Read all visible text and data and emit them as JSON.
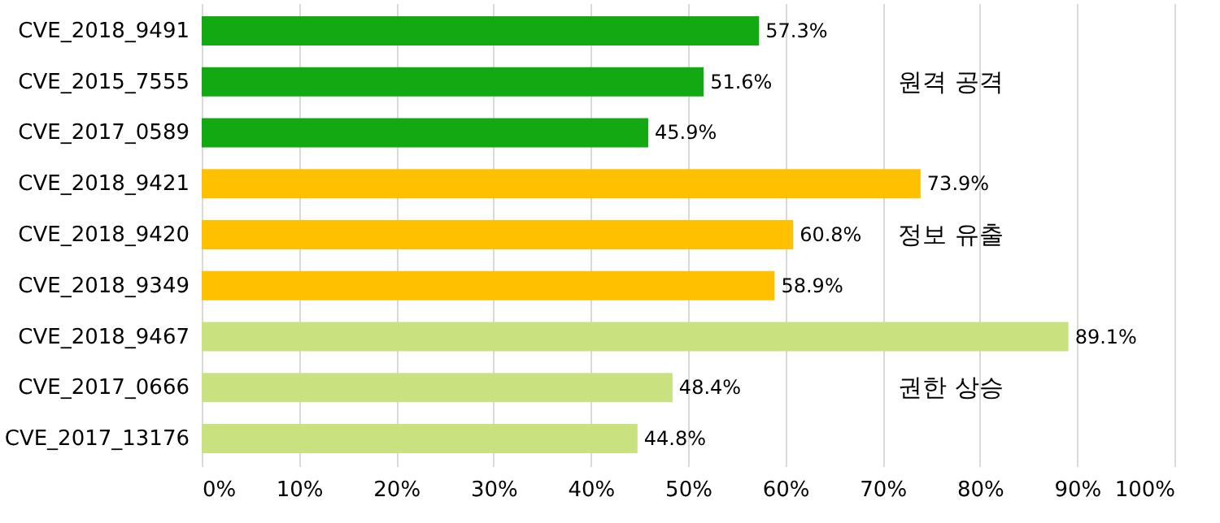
{
  "chart_data": {
    "type": "bar",
    "orientation": "horizontal",
    "categories": [
      "CVE_2018_9491",
      "CVE_2015_7555",
      "CVE_2017_0589",
      "CVE_2018_9421",
      "CVE_2018_9420",
      "CVE_2018_9349",
      "CVE_2018_9467",
      "CVE_2017_0666",
      "CVE_2017_13176"
    ],
    "values": [
      57.3,
      51.6,
      45.9,
      73.9,
      60.8,
      58.9,
      89.1,
      48.4,
      44.8
    ],
    "colors": [
      "#13a913",
      "#13a913",
      "#13a913",
      "#ffc000",
      "#ffc000",
      "#ffc000",
      "#c9e27f",
      "#c9e27f",
      "#c9e27f"
    ],
    "value_labels": [
      "57.3%",
      "51.6%",
      "45.9%",
      "73.9%",
      "60.8%",
      "58.9%",
      "89.1%",
      "48.4%",
      "44.8%"
    ],
    "xlim": [
      0,
      100
    ],
    "xticks": [
      {
        "value": 0,
        "label": "0%"
      },
      {
        "value": 10,
        "label": "10%"
      },
      {
        "value": 20,
        "label": "20%"
      },
      {
        "value": 30,
        "label": "30%"
      },
      {
        "value": 40,
        "label": "40%"
      },
      {
        "value": 50,
        "label": "50%"
      },
      {
        "value": 60,
        "label": "60%"
      },
      {
        "value": 70,
        "label": "70%"
      },
      {
        "value": 80,
        "label": "80%"
      },
      {
        "value": 90,
        "label": "90%"
      },
      {
        "value": 100,
        "label": "100%"
      }
    ],
    "grid": "x",
    "annotations": [
      "원격 공격",
      "정보 유출",
      "권한 상승"
    ]
  }
}
